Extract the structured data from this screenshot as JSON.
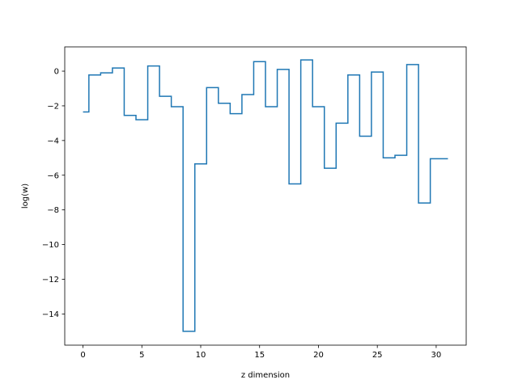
{
  "chart_data": {
    "type": "line",
    "drawstyle": "steps-mid",
    "title": "",
    "xlabel": "z dimension",
    "ylabel": "log(w)",
    "xlim": [
      -1.55,
      32.55
    ],
    "ylim": [
      -15.8,
      1.4
    ],
    "xticks": [
      0,
      5,
      10,
      15,
      20,
      25,
      30
    ],
    "xtick_labels": [
      "0",
      "5",
      "10",
      "15",
      "20",
      "25",
      "30"
    ],
    "yticks": [
      0,
      -2,
      -4,
      -6,
      -8,
      -10,
      -12,
      -14
    ],
    "ytick_labels": [
      "0",
      "−2",
      "−4",
      "−6",
      "−8",
      "−10",
      "−12",
      "−14"
    ],
    "grid": false,
    "legend": "none",
    "series": [
      {
        "color": "#1f77b4",
        "x": [
          0,
          1,
          2,
          3,
          4,
          5,
          6,
          7,
          8,
          9,
          10,
          11,
          12,
          13,
          14,
          15,
          16,
          17,
          18,
          19,
          20,
          21,
          22,
          23,
          24,
          25,
          26,
          27,
          28,
          29,
          30,
          31
        ],
        "y": [
          -2.35,
          -0.22,
          -0.1,
          0.18,
          -2.55,
          -2.8,
          0.3,
          -1.45,
          -2.05,
          -15.0,
          -5.35,
          -0.95,
          -1.85,
          -2.45,
          -1.35,
          0.55,
          -2.05,
          0.1,
          -6.5,
          0.65,
          -2.05,
          -5.6,
          -3.0,
          -0.22,
          -3.75,
          -0.05,
          -5.0,
          -4.85,
          0.38,
          -7.6,
          -5.05,
          -5.05
        ]
      }
    ]
  }
}
